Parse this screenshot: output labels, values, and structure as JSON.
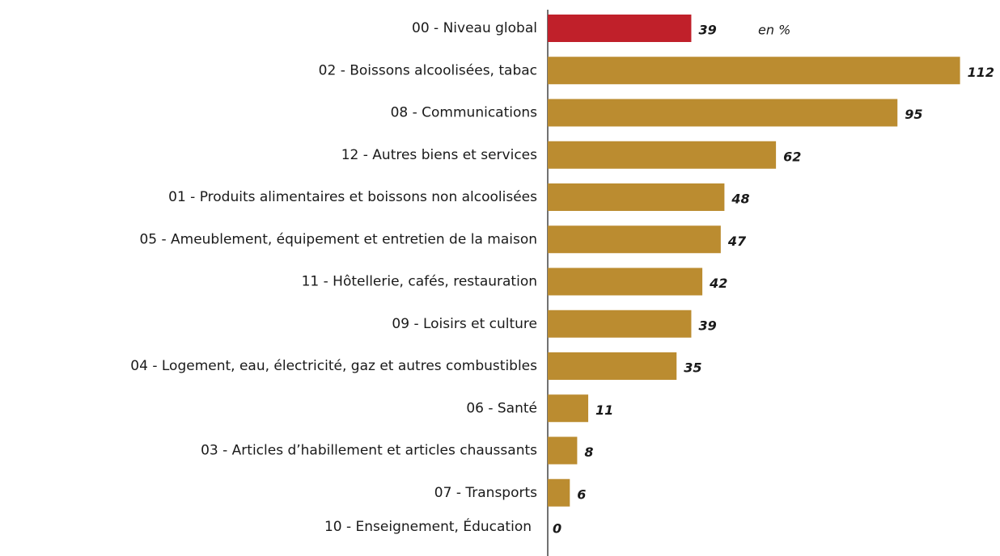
{
  "chart_data": {
    "type": "barh",
    "annotation": "en %",
    "categories": [
      "00 - Niveau global",
      "02 - Boissons alcoolisées, tabac",
      "08 - Communications",
      "12 - Autres biens et services",
      "01 - Produits alimentaires et boissons non alcoolisées",
      "05 - Ameublement, équipement et entretien de la maison",
      "11 - Hôtellerie, cafés, restauration",
      "09 - Loisirs et culture",
      "04 - Logement, eau, électricité, gaz et autres combustibles",
      "06 - Santé",
      "03 - Articles d’habillement et articles chaussants",
      "07 - Transports",
      "10 - Enseignement, Éducation"
    ],
    "values": [
      39,
      112,
      95,
      62,
      48,
      47,
      42,
      39,
      35,
      11,
      8,
      6,
      0
    ],
    "colors": [
      "#c0202a",
      "#bb8c30",
      "#bb8c30",
      "#bb8c30",
      "#bb8c30",
      "#bb8c30",
      "#bb8c30",
      "#bb8c30",
      "#bb8c30",
      "#bb8c30",
      "#bb8c30",
      "#bb8c30",
      "#bb8c30"
    ]
  }
}
